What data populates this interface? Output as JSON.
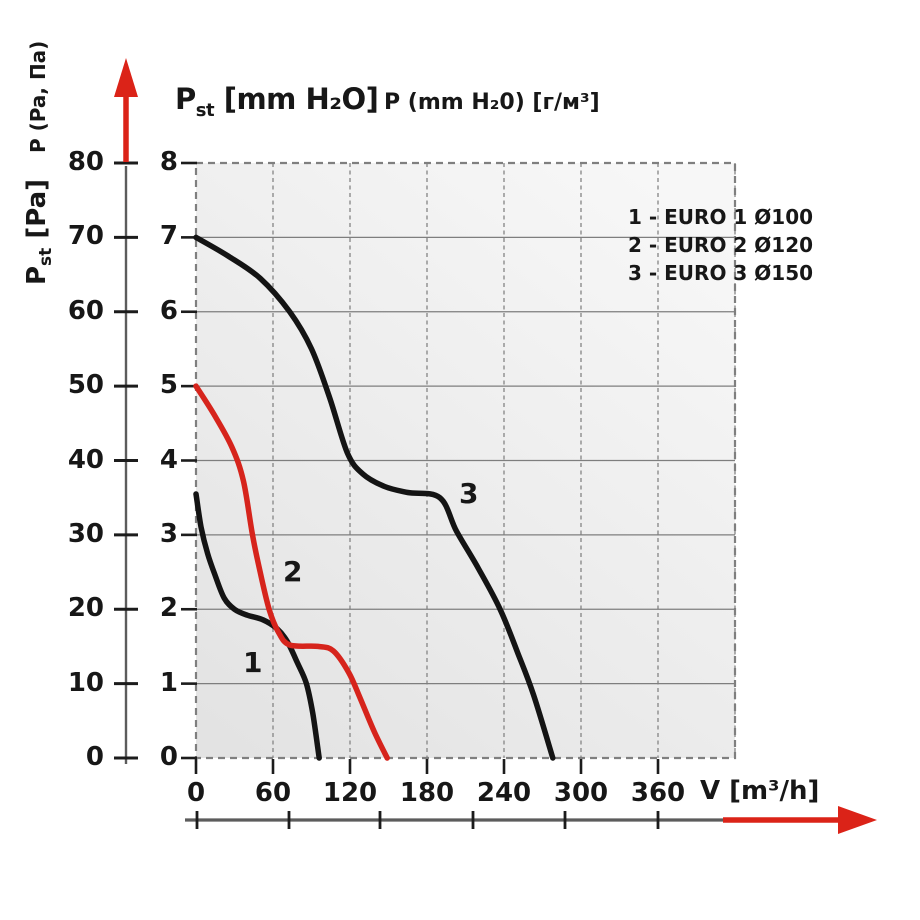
{
  "title": {
    "primary_p": "P",
    "primary_sub": "st",
    "primary_unit": " [mm H₂O]",
    "secondary": "P (mm H₂0) [г/м³]"
  },
  "axes": {
    "pa_secondary": "P (Pa, Па)",
    "pst_p": "P",
    "pst_sub": "st",
    "pst_unit": " [Pa]",
    "x_unit": "V [m³/h]"
  },
  "colors": {
    "curve_black": "#141414",
    "curve_red": "#d6241c",
    "axis_grey": "#5c5c5c",
    "grid_grey": "#8c8c8c",
    "arrow_red": "#db2318"
  },
  "chart_data": {
    "type": "line",
    "title": "Pst [mm H₂O]",
    "title_secondary": "P (mm H₂0) [г/м³]",
    "xlabel": "V [m³/h]",
    "ylabel_inner": "Pst [mm H₂O]",
    "ylabel_outer": "Pst [Pa]",
    "ylabel_outer_secondary": "P (Pa, Па)",
    "xlim": [
      0,
      420
    ],
    "ylim": [
      0,
      8
    ],
    "grid": true,
    "legend_position": "top-right",
    "x_ticks": [
      0,
      60,
      120,
      180,
      240,
      300,
      360
    ],
    "y_ticks_mm_h2o": [
      0,
      1,
      2,
      3,
      4,
      5,
      6,
      7,
      8
    ],
    "y_ticks_pa": [
      0,
      10,
      20,
      30,
      40,
      50,
      60,
      70,
      80
    ],
    "legend": [
      "1 - EURO 1 Ø100",
      "2 - EURO 2 Ø120",
      "3 - EURO 3 Ø150"
    ],
    "series": [
      {
        "name": "1 - EURO 1 Ø100",
        "label": "1",
        "color": "#141414",
        "points": [
          [
            0,
            3.55
          ],
          [
            4,
            3.1
          ],
          [
            9,
            2.75
          ],
          [
            15,
            2.45
          ],
          [
            22,
            2.15
          ],
          [
            30,
            2.0
          ],
          [
            40,
            1.92
          ],
          [
            52,
            1.86
          ],
          [
            63,
            1.74
          ],
          [
            71,
            1.57
          ],
          [
            79,
            1.28
          ],
          [
            86,
            1.0
          ],
          [
            91,
            0.6
          ],
          [
            96,
            0
          ]
        ]
      },
      {
        "name": "2 - EURO 2 Ø120",
        "label": "2",
        "color": "#d6241c",
        "points": [
          [
            0,
            5.0
          ],
          [
            14,
            4.62
          ],
          [
            28,
            4.18
          ],
          [
            37,
            3.72
          ],
          [
            44,
            3.0
          ],
          [
            50,
            2.5
          ],
          [
            57,
            2.0
          ],
          [
            64,
            1.7
          ],
          [
            73,
            1.52
          ],
          [
            95,
            1.5
          ],
          [
            107,
            1.44
          ],
          [
            119,
            1.15
          ],
          [
            128,
            0.8
          ],
          [
            139,
            0.35
          ],
          [
            149,
            0
          ]
        ]
      },
      {
        "name": "3 - EURO 3 Ø150",
        "label": "3",
        "color": "#141414",
        "points": [
          [
            0,
            7.0
          ],
          [
            25,
            6.75
          ],
          [
            50,
            6.45
          ],
          [
            73,
            6.0
          ],
          [
            90,
            5.5
          ],
          [
            104,
            4.85
          ],
          [
            118,
            4.1
          ],
          [
            130,
            3.82
          ],
          [
            147,
            3.65
          ],
          [
            165,
            3.57
          ],
          [
            190,
            3.5
          ],
          [
            203,
            3.05
          ],
          [
            220,
            2.55
          ],
          [
            237,
            2.0
          ],
          [
            251,
            1.4
          ],
          [
            263,
            0.85
          ],
          [
            278,
            0
          ]
        ]
      }
    ]
  }
}
